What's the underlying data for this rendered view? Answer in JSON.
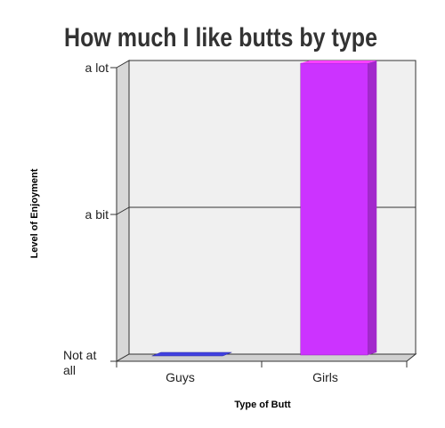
{
  "chart_data": {
    "type": "bar",
    "title": "How much I like butts by type",
    "xlabel": "Type of Butt",
    "ylabel": "Level of Enjoyment",
    "categories": [
      "Guys",
      "Girls"
    ],
    "values": [
      0,
      1
    ],
    "ylim": [
      0,
      1
    ],
    "yticks": [
      {
        "value": 1,
        "label": "a lot"
      },
      {
        "value": 0.5,
        "label": "a bit"
      },
      {
        "value": 0,
        "label": "Not at all"
      }
    ],
    "colors": [
      "#4040e0",
      "#cc33ff"
    ],
    "grid": true,
    "legend": "none"
  }
}
